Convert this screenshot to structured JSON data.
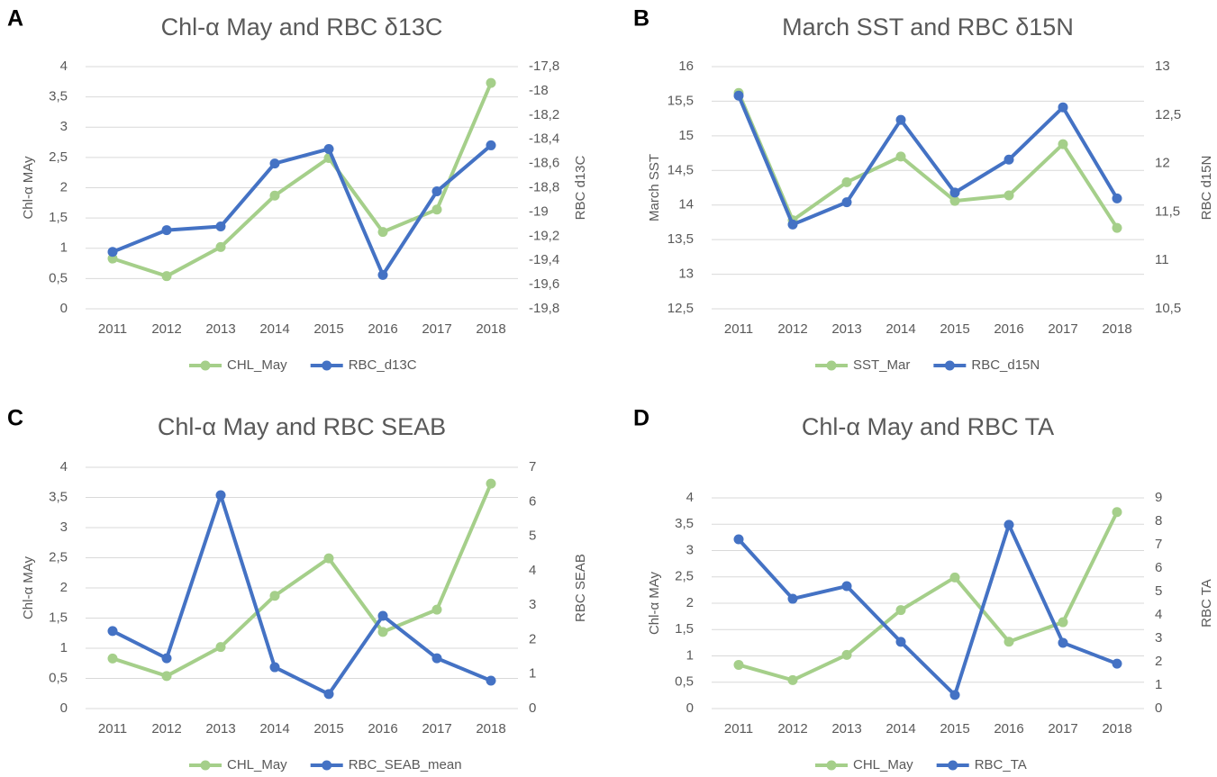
{
  "chart_data": [
    {
      "type": "line",
      "label": "A",
      "title": "Chl-α May and RBC δ13C",
      "y_label": "Chl-α MAy",
      "y2_label": "RBC d13C",
      "categories": [
        "2011",
        "2012",
        "2013",
        "2014",
        "2015",
        "2016",
        "2017",
        "2018"
      ],
      "series": [
        {
          "name": "CHL_May",
          "color": "#a5cf8a",
          "values": [
            0.83,
            0.54,
            1.02,
            1.87,
            2.49,
            1.27,
            1.64,
            3.73
          ]
        },
        {
          "name": "RBC_d13C",
          "color": "#4472c4",
          "axis": "y2",
          "values": [
            -19.33,
            -19.15,
            -19.12,
            -18.6,
            -18.48,
            -19.52,
            -18.83,
            -18.45
          ]
        }
      ],
      "ylim": [
        0,
        4
      ],
      "yticks": [
        0,
        {
          "value": 0.5,
          "label": "0,5"
        },
        1,
        {
          "value": 1.5,
          "label": "1,5"
        },
        2,
        {
          "value": 2.5,
          "label": "2,5"
        },
        3,
        {
          "value": 3.5,
          "label": "3,5"
        },
        4
      ],
      "y2lim": [
        -19.8,
        -17.8
      ],
      "y2ticks": [
        {
          "value": -19.8,
          "label": "-19,8"
        },
        {
          "value": -19.6,
          "label": "-19,6"
        },
        {
          "value": -19.4,
          "label": "-19,4"
        },
        {
          "value": -19.2,
          "label": "-19,2"
        },
        -19,
        {
          "value": -18.8,
          "label": "-18,8"
        },
        {
          "value": -18.6,
          "label": "-18,6"
        },
        {
          "value": -18.4,
          "label": "-18,4"
        },
        {
          "value": -18.2,
          "label": "-18,2"
        },
        -18,
        {
          "value": -17.8,
          "label": "-17,8"
        }
      ],
      "grid": true,
      "legend": "bottom"
    },
    {
      "type": "line",
      "label": "B",
      "title": "March SST and RBC δ15N",
      "y_label": "March SST",
      "y2_label": "RBC d15N",
      "categories": [
        "2011",
        "2012",
        "2013",
        "2014",
        "2015",
        "2016",
        "2017",
        "2018"
      ],
      "series": [
        {
          "name": "SST_Mar",
          "color": "#a5cf8a",
          "values": [
            15.62,
            13.78,
            14.33,
            14.7,
            14.06,
            14.14,
            14.88,
            13.67
          ]
        },
        {
          "name": "RBC_d15N",
          "color": "#4472c4",
          "axis": "y2",
          "values": [
            12.7,
            11.37,
            11.6,
            12.45,
            11.7,
            12.04,
            12.58,
            11.64
          ]
        }
      ],
      "ylim": [
        12.5,
        16
      ],
      "yticks": [
        {
          "value": 12.5,
          "label": "12,5"
        },
        13,
        {
          "value": 13.5,
          "label": "13,5"
        },
        14,
        {
          "value": 14.5,
          "label": "14,5"
        },
        15,
        {
          "value": 15.5,
          "label": "15,5"
        },
        16
      ],
      "y2lim": [
        10.5,
        13
      ],
      "y2ticks": [
        {
          "value": 10.5,
          "label": "10,5"
        },
        11,
        {
          "value": 11.5,
          "label": "11,5"
        },
        12,
        {
          "value": 12.5,
          "label": "12,5"
        },
        13
      ],
      "grid": true,
      "legend": "bottom"
    },
    {
      "type": "line",
      "label": "C",
      "title": "Chl-α May and RBC SEAB",
      "y_label": "Chl-α MAy",
      "y2_label": "RBC SEAB",
      "categories": [
        "2011",
        "2012",
        "2013",
        "2014",
        "2015",
        "2016",
        "2017",
        "2018"
      ],
      "series": [
        {
          "name": "CHL_May",
          "color": "#a5cf8a",
          "values": [
            0.83,
            0.54,
            1.02,
            1.87,
            2.49,
            1.27,
            1.64,
            3.73
          ]
        },
        {
          "name": "RBC_SEAB_mean",
          "color": "#4472c4",
          "axis": "y2",
          "values": [
            2.25,
            1.46,
            6.19,
            1.2,
            0.42,
            2.69,
            1.46,
            0.81
          ]
        }
      ],
      "ylim": [
        0,
        4
      ],
      "yticks": [
        0,
        {
          "value": 0.5,
          "label": "0,5"
        },
        1,
        {
          "value": 1.5,
          "label": "1,5"
        },
        2,
        {
          "value": 2.5,
          "label": "2,5"
        },
        3,
        {
          "value": 3.5,
          "label": "3,5"
        },
        4
      ],
      "y2lim": [
        0,
        7
      ],
      "y2ticks": [
        0,
        1,
        2,
        3,
        4,
        5,
        6,
        7
      ],
      "grid": true,
      "legend": "bottom"
    },
    {
      "type": "line",
      "label": "D",
      "title": "Chl-α May and RBC TA",
      "y_label": "Chl-α MAy",
      "y2_label": "RBC TA",
      "categories": [
        "2011",
        "2012",
        "2013",
        "2014",
        "2015",
        "2016",
        "2017",
        "2018"
      ],
      "series": [
        {
          "name": "CHL_May",
          "color": "#a5cf8a",
          "values": [
            0.83,
            0.54,
            1.02,
            1.87,
            2.49,
            1.27,
            1.64,
            3.73
          ]
        },
        {
          "name": "RBC_TA",
          "color": "#4472c4",
          "axis": "y2",
          "values": [
            7.23,
            4.69,
            5.23,
            2.85,
            0.58,
            7.85,
            2.81,
            1.92
          ]
        }
      ],
      "ylim": [
        0,
        4
      ],
      "yticks": [
        0,
        {
          "value": 0.5,
          "label": "0,5"
        },
        1,
        {
          "value": 1.5,
          "label": "1,5"
        },
        2,
        {
          "value": 2.5,
          "label": "2,5"
        },
        3,
        {
          "value": 3.5,
          "label": "3,5"
        },
        4
      ],
      "y2lim": [
        0,
        9
      ],
      "y2ticks": [
        0,
        1,
        2,
        3,
        4,
        5,
        6,
        7,
        8,
        9
      ],
      "grid": true,
      "legend": "bottom"
    }
  ]
}
